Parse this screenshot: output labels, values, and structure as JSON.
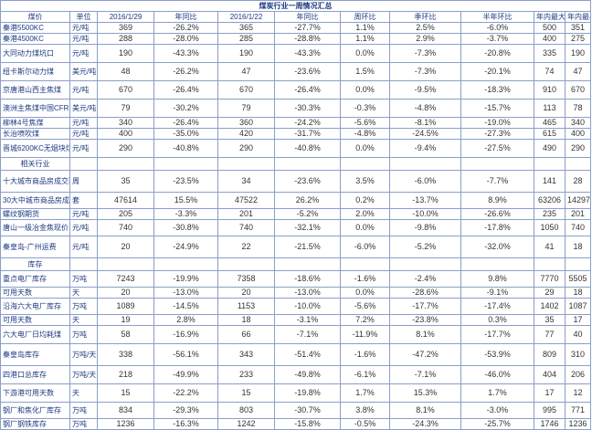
{
  "title": "煤炭行业一周情况汇总",
  "headers": [
    "煤价",
    "单位",
    "2016/1/29",
    "年同比",
    "2016/1/22",
    "年同比",
    "周环比",
    "季环比",
    "半年环比",
    "年内最大值",
    "年内最小值"
  ],
  "section_related": "相关行业",
  "section_inventory": "库存",
  "price_rows": [
    {
      "name": "秦港5500KC",
      "unit": "元/吨",
      "v1": "369",
      "y1": "-26.2%",
      "v2": "365",
      "y2": "-27.7%",
      "w": "1.1%",
      "q": "2.5%",
      "h": "-6.0%",
      "max": "500",
      "min": "351"
    },
    {
      "name": "秦港4500KC",
      "unit": "元/吨",
      "v1": "288",
      "y1": "-28.0%",
      "v2": "285",
      "y2": "-28.8%",
      "w": "1.1%",
      "q": "2.9%",
      "h": "-3.7%",
      "max": "400",
      "min": "275"
    },
    {
      "name": "大同动力煤坑口",
      "unit": "元/吨",
      "v1": "190",
      "y1": "-43.3%",
      "v2": "190",
      "y2": "-43.3%",
      "w": "0.0%",
      "q": "-7.3%",
      "h": "-20.8%",
      "max": "335",
      "min": "190"
    },
    {
      "name": "纽卡斯尔动力煤",
      "unit": "美元/吨",
      "v1": "48",
      "y1": "-26.2%",
      "v2": "47",
      "y2": "-23.6%",
      "w": "1.5%",
      "q": "-7.3%",
      "h": "-20.1%",
      "max": "74",
      "min": "47"
    },
    {
      "name": "京唐港山西主焦煤",
      "unit": "元/吨",
      "v1": "670",
      "y1": "-26.4%",
      "v2": "670",
      "y2": "-26.4%",
      "w": "0.0%",
      "q": "-9.5%",
      "h": "-18.3%",
      "max": "910",
      "min": "670"
    },
    {
      "name": "澳洲主焦煤中国CFR",
      "unit": "美元/吨",
      "v1": "79",
      "y1": "-30.2%",
      "v2": "79",
      "y2": "-30.3%",
      "w": "-0.3%",
      "q": "-4.8%",
      "h": "-15.7%",
      "max": "113",
      "min": "78"
    },
    {
      "name": "柳林4号焦煤",
      "unit": "元/吨",
      "v1": "340",
      "y1": "-26.4%",
      "v2": "360",
      "y2": "-24.2%",
      "w": "-5.6%",
      "q": "-8.1%",
      "h": "-19.0%",
      "max": "465",
      "min": "340"
    },
    {
      "name": "长治喷吹煤",
      "unit": "元/吨",
      "v1": "400",
      "y1": "-35.0%",
      "v2": "420",
      "y2": "-31.7%",
      "w": "-4.8%",
      "q": "-24.5%",
      "h": "-27.3%",
      "max": "615",
      "min": "400"
    },
    {
      "name": "晋城6200KC无烟块煤",
      "unit": "元/吨",
      "v1": "290",
      "y1": "-40.8%",
      "v2": "290",
      "y2": "-40.8%",
      "w": "0.0%",
      "q": "-9.4%",
      "h": "-27.5%",
      "max": "490",
      "min": "290"
    }
  ],
  "related_rows": [
    {
      "name": "十大城市商品房成交面积",
      "unit": "周",
      "v1": "35",
      "y1": "-23.5%",
      "v2": "34",
      "y2": "-23.6%",
      "w": "3.5%",
      "q": "-6.0%",
      "h": "-7.7%",
      "max": "141",
      "min": "28"
    },
    {
      "name": "30大中城市商品房成交套数",
      "unit": "套",
      "v1": "47614",
      "y1": "15.5%",
      "v2": "47522",
      "y2": "26.2%",
      "w": "0.2%",
      "q": "-13.7%",
      "h": "8.9%",
      "max": "63206",
      "min": "14297"
    },
    {
      "name": "螺纹钢期货",
      "unit": "元/吨",
      "v1": "205",
      "y1": "-3.3%",
      "v2": "201",
      "y2": "-5.2%",
      "w": "2.0%",
      "q": "-10.0%",
      "h": "-26.6%",
      "max": "235",
      "min": "201"
    },
    {
      "name": "唐山一级冶金焦现价",
      "unit": "元/吨",
      "v1": "740",
      "y1": "-30.8%",
      "v2": "740",
      "y2": "-32.1%",
      "w": "0.0%",
      "q": "-9.8%",
      "h": "-17.8%",
      "max": "1050",
      "min": "740"
    },
    {
      "name": "秦皇岛-广州运费",
      "unit": "元/吨",
      "v1": "20",
      "y1": "-24.9%",
      "v2": "22",
      "y2": "-21.5%",
      "w": "-6.0%",
      "q": "-5.2%",
      "h": "-32.0%",
      "max": "41",
      "min": "18"
    }
  ],
  "inventory_rows": [
    {
      "name": "重点电厂库存",
      "unit": "万吨",
      "v1": "7243",
      "y1": "-19.9%",
      "v2": "7358",
      "y2": "-18.6%",
      "w": "-1.6%",
      "q": "-2.4%",
      "h": "9.8%",
      "max": "7770",
      "min": "5505"
    },
    {
      "name": "可用天数",
      "unit": "天",
      "v1": "20",
      "y1": "-13.0%",
      "v2": "20",
      "y2": "-13.0%",
      "w": "0.0%",
      "q": "-28.6%",
      "h": "-9.1%",
      "max": "29",
      "min": "18"
    },
    {
      "name": "沿海六大电厂库存",
      "unit": "万吨",
      "v1": "1089",
      "y1": "-14.5%",
      "v2": "1153",
      "y2": "-10.0%",
      "w": "-5.6%",
      "q": "-17.7%",
      "h": "-17.4%",
      "max": "1402",
      "min": "1087"
    },
    {
      "name": "可用天数",
      "unit": "天",
      "v1": "19",
      "y1": "2.8%",
      "v2": "18",
      "y2": "-3.1%",
      "w": "7.2%",
      "q": "-23.8%",
      "h": "0.3%",
      "max": "35",
      "min": "17"
    },
    {
      "name": "六大电厂日均耗煤",
      "unit": "万吨",
      "v1": "58",
      "y1": "-16.9%",
      "v2": "66",
      "y2": "-7.1%",
      "w": "-11.9%",
      "q": "8.1%",
      "h": "-17.7%",
      "max": "77",
      "min": "40"
    },
    {
      "name": "秦皇岛库存",
      "unit": "万吨/天",
      "v1": "338",
      "y1": "-56.1%",
      "v2": "343",
      "y2": "-51.4%",
      "w": "-1.6%",
      "q": "-47.2%",
      "h": "-53.9%",
      "max": "809",
      "min": "310"
    },
    {
      "name": "四港口总库存",
      "unit": "万吨/天",
      "v1": "218",
      "y1": "-49.9%",
      "v2": "233",
      "y2": "-49.8%",
      "w": "-6.1%",
      "q": "-7.1%",
      "h": "-46.0%",
      "max": "404",
      "min": "206"
    },
    {
      "name": "下游港可用天数",
      "unit": "天",
      "v1": "15",
      "y1": "-22.2%",
      "v2": "15",
      "y2": "-19.8%",
      "w": "1.7%",
      "q": "15.3%",
      "h": "1.7%",
      "max": "17",
      "min": "12"
    },
    {
      "name": "钢厂和焦化厂库存",
      "unit": "万吨",
      "v1": "834",
      "y1": "-29.3%",
      "v2": "803",
      "y2": "-30.7%",
      "w": "3.8%",
      "q": "8.1%",
      "h": "-3.0%",
      "max": "995",
      "min": "771"
    },
    {
      "name": "钢厂钢铁库存",
      "unit": "万吨",
      "v1": "1236",
      "y1": "-16.3%",
      "v2": "1242",
      "y2": "-15.8%",
      "w": "-0.5%",
      "q": "-24.3%",
      "h": "-25.7%",
      "max": "1746",
      "min": "1236"
    }
  ]
}
